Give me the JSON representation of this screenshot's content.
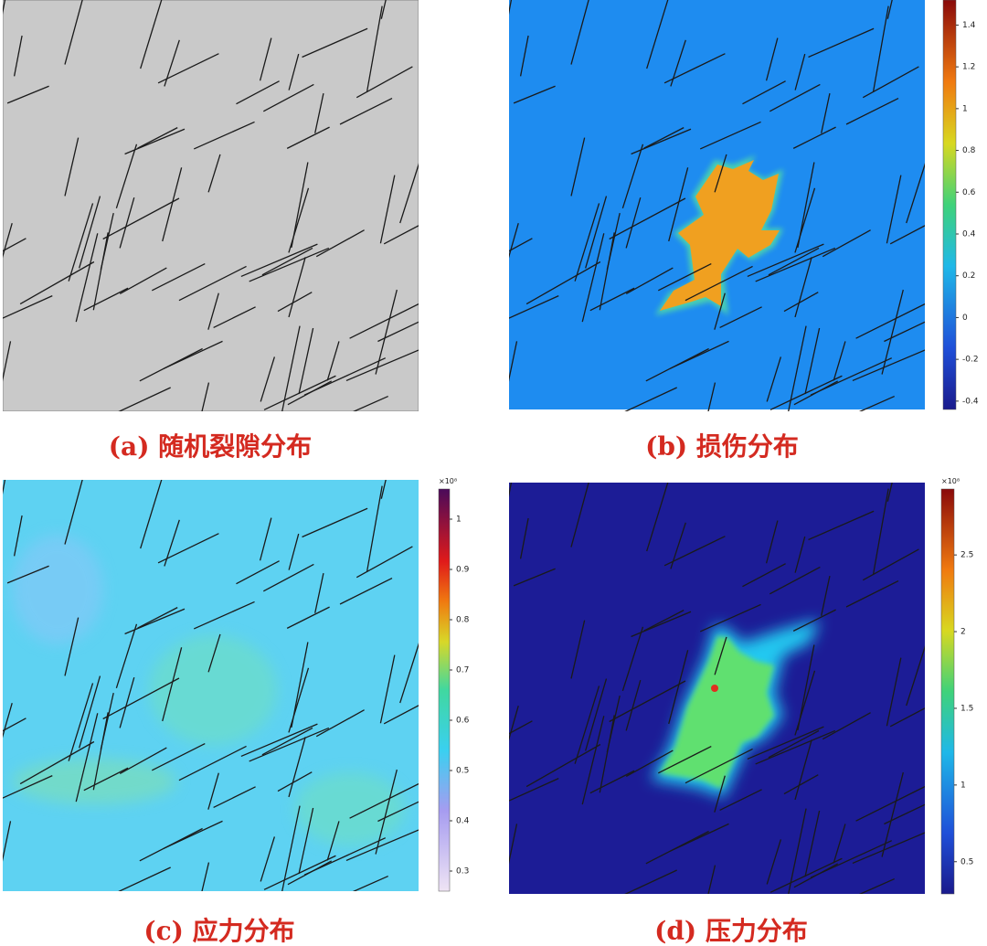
{
  "panels": [
    {
      "caption": "(a) 随机裂隙分布"
    },
    {
      "caption": "(b) 损伤分布",
      "colorbar": {
        "lim": [
          -0.44,
          1.52
        ],
        "ticks": [
          -0.4,
          -0.2,
          0,
          0.2,
          0.4,
          0.6,
          0.8,
          1,
          1.2,
          1.4
        ]
      }
    },
    {
      "caption": "(c) 应力分布",
      "colorbar": {
        "multiplier": "×10⁸",
        "lim": [
          0.26,
          1.06
        ],
        "ticks": [
          0.3,
          0.4,
          0.5,
          0.6,
          0.7,
          0.8,
          0.9,
          1
        ]
      }
    },
    {
      "caption": "(d) 压力分布",
      "colorbar": {
        "multiplier": "×10⁸",
        "lim": [
          0.29,
          2.93
        ],
        "ticks": [
          0.5,
          1,
          1.5,
          2,
          2.5
        ]
      }
    }
  ]
}
